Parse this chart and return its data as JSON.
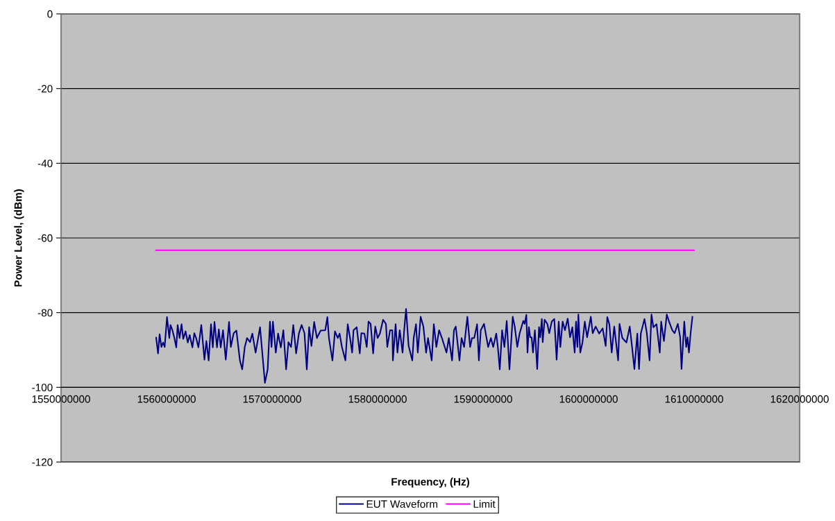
{
  "chart_data": {
    "type": "line",
    "xlabel": "Frequency, (Hz)",
    "ylabel": "Power Level, (dBm)",
    "xlim": [
      1550000000,
      1620000000
    ],
    "xticks": [
      1550000000,
      1560000000,
      1570000000,
      1580000000,
      1590000000,
      1600000000,
      1610000000,
      1620000000
    ],
    "ylim": [
      -120,
      0
    ],
    "yticks": [
      -120,
      -100,
      -80,
      -60,
      -40,
      -20,
      0
    ],
    "grid": "y",
    "legend": "bottom",
    "marker": "none",
    "line_style": "solid",
    "series": [
      {
        "name": "EUT Waveform",
        "color": "#000080",
        "x": [
          1559010000,
          1559190000,
          1559340000,
          1559510000,
          1559670000,
          1559820000,
          1560040000,
          1560260000,
          1560370000,
          1560550000,
          1560740000,
          1560920000,
          1561050000,
          1561230000,
          1561420000,
          1561580000,
          1561800000,
          1562010000,
          1562190000,
          1562450000,
          1562630000,
          1562800000,
          1563020000,
          1563290000,
          1563590000,
          1563770000,
          1563990000,
          1564210000,
          1564380000,
          1564540000,
          1564780000,
          1564950000,
          1565130000,
          1565350000,
          1565610000,
          1565920000,
          1566090000,
          1566360000,
          1566620000,
          1566950000,
          1567170000,
          1567410000,
          1567630000,
          1567910000,
          1568130000,
          1568440000,
          1568860000,
          1569210000,
          1569320000,
          1569580000,
          1569800000,
          1569950000,
          1570080000,
          1570350000,
          1570570000,
          1570830000,
          1571070000,
          1571330000,
          1571550000,
          1571800000,
          1572010000,
          1572280000,
          1572540000,
          1572800000,
          1573070000,
          1573290000,
          1573510000,
          1573730000,
          1573990000,
          1574250000,
          1574600000,
          1575040000,
          1575240000,
          1575390000,
          1575520000,
          1575720000,
          1575960000,
          1576230000,
          1576400000,
          1576620000,
          1576950000,
          1577170000,
          1577390000,
          1577590000,
          1577720000,
          1578020000,
          1578310000,
          1578460000,
          1578750000,
          1578970000,
          1579140000,
          1579340000,
          1579580000,
          1579780000,
          1580000000,
          1580220000,
          1580520000,
          1580790000,
          1580920000,
          1581180000,
          1581400000,
          1581450000,
          1581710000,
          1581880000,
          1582100000,
          1582370000,
          1582520000,
          1582700000,
          1582940000,
          1583290000,
          1583420000,
          1583640000,
          1583810000,
          1584080000,
          1584340000,
          1584600000,
          1584780000,
          1585130000,
          1585330000,
          1585570000,
          1585830000,
          1586100000,
          1586530000,
          1586750000,
          1587060000,
          1587240000,
          1587410000,
          1587760000,
          1587960000,
          1588200000,
          1588510000,
          1588770000,
          1588950000,
          1589160000,
          1589430000,
          1589600000,
          1589780000,
          1590090000,
          1590480000,
          1590740000,
          1590960000,
          1591250000,
          1591400000,
          1591580000,
          1591800000,
          1592020000,
          1592240000,
          1592500000,
          1592810000,
          1593000000,
          1593240000,
          1593460000,
          1593810000,
          1593940000,
          1594100000,
          1594210000,
          1594340000,
          1594470000,
          1594600000,
          1594730000,
          1594910000,
          1595130000,
          1595300000,
          1595410000,
          1595570000,
          1595650000,
          1595830000,
          1596090000,
          1596270000,
          1596510000,
          1596750000,
          1596970000,
          1597170000,
          1597320000,
          1597540000,
          1597760000,
          1598020000,
          1598240000,
          1598460000,
          1598680000,
          1598810000,
          1598940000,
          1599030000,
          1599210000,
          1599420000,
          1599640000,
          1599860000,
          1600210000,
          1600390000,
          1600670000,
          1601000000,
          1601330000,
          1601620000,
          1601770000,
          1601970000,
          1602190000,
          1602430000,
          1602800000,
          1602930000,
          1603200000,
          1603590000,
          1603900000,
          1604120000,
          1604340000,
          1604620000,
          1604780000,
          1604950000,
          1605300000,
          1605520000,
          1605780000,
          1605960000,
          1606140000,
          1606440000,
          1606750000,
          1606880000,
          1607140000,
          1607410000,
          1607630000,
          1607930000,
          1608150000,
          1608460000,
          1608680000,
          1608810000,
          1609070000,
          1609250000,
          1609380000,
          1609510000,
          1609670000,
          1609840000
        ],
        "values": [
          -86.7,
          -90.9,
          -85.8,
          -89.2,
          -88.0,
          -89.2,
          -81.2,
          -86.8,
          -83.3,
          -84.7,
          -86.8,
          -89.3,
          -83.3,
          -86.8,
          -83.1,
          -87.0,
          -85.0,
          -88.0,
          -86.0,
          -89.3,
          -85.5,
          -86.8,
          -89.3,
          -83.3,
          -92.6,
          -87.6,
          -92.8,
          -83.1,
          -89.3,
          -82.5,
          -89.3,
          -84.5,
          -89.3,
          -84.7,
          -92.6,
          -82.5,
          -89.2,
          -85.5,
          -84.8,
          -92.8,
          -95.2,
          -89.2,
          -86.8,
          -87.9,
          -85.6,
          -90.7,
          -83.9,
          -95.2,
          -98.8,
          -95.2,
          -82.4,
          -89.2,
          -82.4,
          -90.7,
          -85.6,
          -89.3,
          -84.7,
          -95.2,
          -87.9,
          -89.2,
          -83.3,
          -90.9,
          -85.6,
          -83.3,
          -85.5,
          -95.2,
          -83.9,
          -88.9,
          -82.5,
          -86.8,
          -84.8,
          -84.7,
          -81.2,
          -86.8,
          -89.2,
          -92.8,
          -85.0,
          -86.8,
          -85.6,
          -89.2,
          -92.8,
          -83.1,
          -86.8,
          -90.7,
          -84.7,
          -83.9,
          -90.9,
          -85.5,
          -85.6,
          -89.2,
          -82.4,
          -83.0,
          -90.9,
          -83.7,
          -86.8,
          -85.6,
          -81.9,
          -83.0,
          -89.2,
          -84.7,
          -84.7,
          -92.8,
          -83.1,
          -90.7,
          -84.7,
          -90.7,
          -84.7,
          -79.0,
          -88.9,
          -92.8,
          -86.8,
          -83.1,
          -90.7,
          -81.1,
          -83.7,
          -90.7,
          -86.8,
          -92.8,
          -83.1,
          -89.2,
          -84.7,
          -86.8,
          -90.7,
          -86.8,
          -92.8,
          -84.7,
          -83.7,
          -92.8,
          -86.8,
          -89.2,
          -81.1,
          -89.2,
          -86.8,
          -86.8,
          -83.1,
          -92.8,
          -84.7,
          -83.0,
          -89.2,
          -86.8,
          -89.2,
          -85.6,
          -89.3,
          -95.2,
          -84.7,
          -89.2,
          -82.2,
          -95.2,
          -81.1,
          -83.7,
          -89.2,
          -85.6,
          -82.2,
          -83.0,
          -80.6,
          -90.7,
          -83.9,
          -86.6,
          -86.6,
          -90.7,
          -84.7,
          -95.1,
          -83.9,
          -86.6,
          -81.7,
          -87.9,
          -81.9,
          -83.0,
          -85.5,
          -82.4,
          -81.7,
          -92.6,
          -82.4,
          -89.2,
          -82.4,
          -84.7,
          -81.6,
          -86.6,
          -83.9,
          -90.7,
          -82.4,
          -89.2,
          -80.5,
          -90.7,
          -88.0,
          -82.4,
          -86.6,
          -81.1,
          -85.5,
          -83.7,
          -85.6,
          -84.2,
          -88.9,
          -81.2,
          -83.1,
          -90.7,
          -83.7,
          -92.8,
          -83.0,
          -86.8,
          -88.0,
          -83.7,
          -89.2,
          -95.1,
          -85.6,
          -95.1,
          -85.6,
          -81.7,
          -85.5,
          -92.8,
          -80.5,
          -83.9,
          -83.1,
          -90.7,
          -82.4,
          -87.6,
          -80.5,
          -82.4,
          -84.7,
          -85.5,
          -83.0,
          -86.6,
          -95.1,
          -82.4,
          -89.2,
          -86.6,
          -90.7,
          -85.5,
          -81.1
        ]
      },
      {
        "name": "Limit",
        "color": "#ff00ff",
        "x": [
          1559000000,
          1610000000
        ],
        "values": [
          -63.3,
          -63.3
        ]
      }
    ]
  }
}
